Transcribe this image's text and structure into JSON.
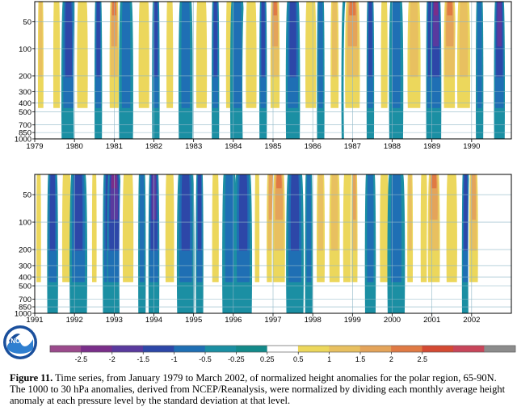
{
  "chart_data": [
    {
      "type": "heatmap",
      "title": "",
      "xlabel": "",
      "ylabel": "",
      "x_start_year": 1979,
      "x_ticks": [
        "1979",
        "1980",
        "1981",
        "1982",
        "1983",
        "1984",
        "1985",
        "1986",
        "1987",
        "1988",
        "1989",
        "1990"
      ],
      "y_axis_scale": "log",
      "y_ticks": [
        50,
        100,
        200,
        300,
        400,
        500,
        700,
        850,
        1000
      ],
      "y_range": [
        30,
        1000
      ],
      "grid": true,
      "features": [
        {
          "year": 1979.15,
          "value": 1.0
        },
        {
          "year": 1979.55,
          "value": 0.6
        },
        {
          "year": 1979.85,
          "value": -1.2
        },
        {
          "year": 1980.2,
          "value": 0.7
        },
        {
          "year": 1980.6,
          "value": -1.0
        },
        {
          "year": 1981.0,
          "value": 2.0
        },
        {
          "year": 1981.3,
          "value": -0.8
        },
        {
          "year": 1981.75,
          "value": 0.6
        },
        {
          "year": 1982.05,
          "value": -1.0
        },
        {
          "year": 1982.4,
          "value": 0.9
        },
        {
          "year": 1982.8,
          "value": -0.7
        },
        {
          "year": 1983.2,
          "value": 0.6
        },
        {
          "year": 1983.55,
          "value": -1.3
        },
        {
          "year": 1983.9,
          "value": 0.5
        },
        {
          "year": 1984.1,
          "value": -0.6
        },
        {
          "year": 1984.45,
          "value": 0.8
        },
        {
          "year": 1984.75,
          "value": -1.0
        },
        {
          "year": 1985.05,
          "value": 2.3
        },
        {
          "year": 1985.5,
          "value": -1.0
        },
        {
          "year": 1985.95,
          "value": 0.7
        },
        {
          "year": 1986.2,
          "value": -0.9
        },
        {
          "year": 1986.55,
          "value": 1.2
        },
        {
          "year": 1986.9,
          "value": -0.8
        },
        {
          "year": 1987.0,
          "value": 2.1
        },
        {
          "year": 1987.45,
          "value": -1.2
        },
        {
          "year": 1987.8,
          "value": 0.7
        },
        {
          "year": 1988.1,
          "value": -0.6
        },
        {
          "year": 1988.55,
          "value": 1.1
        },
        {
          "year": 1988.95,
          "value": -1.4
        },
        {
          "year": 1989.1,
          "value": -2.2
        },
        {
          "year": 1989.45,
          "value": 2.0
        },
        {
          "year": 1989.8,
          "value": 1.2
        },
        {
          "year": 1990.2,
          "value": -0.8
        },
        {
          "year": 1990.7,
          "value": -1.5
        }
      ]
    },
    {
      "type": "heatmap",
      "title": "",
      "xlabel": "",
      "ylabel": "",
      "x_start_year": 1991,
      "x_ticks": [
        "1991",
        "1992",
        "1993",
        "1994",
        "1995",
        "1996",
        "1997",
        "1998",
        "1999",
        "2000",
        "2001",
        "2002"
      ],
      "y_axis_scale": "log",
      "y_ticks": [
        50,
        100,
        200,
        300,
        400,
        500,
        700,
        850,
        1000
      ],
      "y_range": [
        30,
        1000
      ],
      "grid": true,
      "features": [
        {
          "year": 1991.1,
          "value": 0.8
        },
        {
          "year": 1991.45,
          "value": -1.0
        },
        {
          "year": 1991.8,
          "value": 0.6
        },
        {
          "year": 1992.1,
          "value": -1.3
        },
        {
          "year": 1992.5,
          "value": 0.5
        },
        {
          "year": 1992.85,
          "value": -1.0
        },
        {
          "year": 1993.0,
          "value": -2.0
        },
        {
          "year": 1993.35,
          "value": 0.7
        },
        {
          "year": 1993.7,
          "value": -0.9
        },
        {
          "year": 1994.0,
          "value": -1.5
        },
        {
          "year": 1994.4,
          "value": 0.6
        },
        {
          "year": 1994.8,
          "value": -1.1
        },
        {
          "year": 1995.15,
          "value": -1.3
        },
        {
          "year": 1995.55,
          "value": 0.5
        },
        {
          "year": 1995.9,
          "value": -0.9
        },
        {
          "year": 1996.25,
          "value": -1.2
        },
        {
          "year": 1996.6,
          "value": 0.6
        },
        {
          "year": 1996.95,
          "value": 1.6
        },
        {
          "year": 1997.15,
          "value": 2.0
        },
        {
          "year": 1997.55,
          "value": -1.3
        },
        {
          "year": 1997.9,
          "value": -0.8
        },
        {
          "year": 1998.2,
          "value": 1.2
        },
        {
          "year": 1998.55,
          "value": 1.0
        },
        {
          "year": 1998.9,
          "value": 0.7
        },
        {
          "year": 1999.05,
          "value": 1.9
        },
        {
          "year": 1999.45,
          "value": -0.8
        },
        {
          "year": 1999.8,
          "value": 0.9
        },
        {
          "year": 2000.1,
          "value": -0.6
        },
        {
          "year": 2000.45,
          "value": 1.3
        },
        {
          "year": 2000.8,
          "value": 0.8
        },
        {
          "year": 2001.05,
          "value": 2.2
        },
        {
          "year": 2001.5,
          "value": 0.9
        },
        {
          "year": 2001.85,
          "value": -1.0
        },
        {
          "year": 2002.05,
          "value": 1.6
        }
      ]
    }
  ],
  "colorbar": {
    "bins": [
      {
        "color": "#9b4a8c"
      },
      {
        "color": "#7a2e8a"
      },
      {
        "color": "#5a3a9e"
      },
      {
        "color": "#2d47a8"
      },
      {
        "color": "#1f6fb4"
      },
      {
        "color": "#1b8fa3"
      },
      {
        "color": "#138a8a"
      },
      {
        "color": "#ffffff"
      },
      {
        "color": "#ecd75c"
      },
      {
        "color": "#e8c060"
      },
      {
        "color": "#e4a45a"
      },
      {
        "color": "#e07a44"
      },
      {
        "color": "#d44a33"
      },
      {
        "color": "#c8455a"
      },
      {
        "color": "#8c8c8c"
      }
    ],
    "labels": [
      "-2.5",
      "-2",
      "-1.5",
      "-1",
      "-0.5",
      "-0.25",
      "0.25",
      "0.5",
      "1",
      "1.5",
      "2",
      "2.5"
    ]
  },
  "logo_text": "NOAA",
  "caption": {
    "label": "Figure 11.",
    "text": "Time series, from January 1979 to March 2002, of normalized height anomalies for the polar region, 65-90N.  The 1000 to 30 hPa anomalies, derived from NCEP/Reanalysis, were normalized by dividing each monthly average height anomaly at each pressure level by the standard deviation at that level."
  }
}
